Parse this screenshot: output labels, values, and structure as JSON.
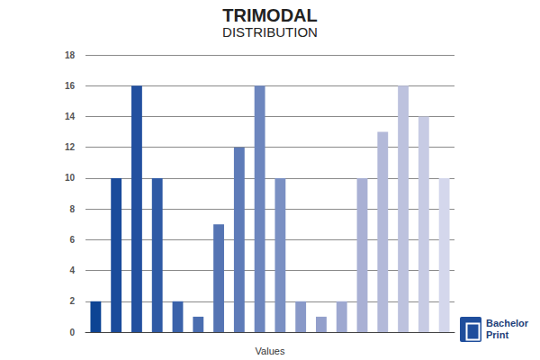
{
  "chart_data": {
    "type": "bar",
    "title": "TRIMODAL",
    "subtitle": "DISTRIBUTION",
    "x_label": "Values",
    "annotations": [
      "Bachelor",
      "Print"
    ],
    "categories": [
      null,
      null,
      null,
      null,
      null,
      null,
      null,
      null,
      null,
      null,
      null,
      null,
      null,
      null,
      null,
      null,
      null,
      null
    ],
    "values": [
      2,
      10,
      16,
      10,
      2,
      1,
      7,
      12,
      16,
      10,
      2,
      1,
      2,
      10,
      13,
      16,
      14,
      10
    ],
    "colors": [
      "#0d4494",
      "#1a4b9b",
      "#23509f",
      "#2f5aa5",
      "#3a62aa",
      "#4a6db0",
      "#5574b3",
      "#5e7bb8",
      "#6d86be",
      "#7a90c3",
      "#8999c8",
      "#939fcb",
      "#9ea8d0",
      "#a9b0d4",
      "#b3b9d9",
      "#bdc2de",
      "#c7cbe4",
      "#d4d7ec"
    ],
    "ylim": [
      0,
      18
    ],
    "yticks": [
      0,
      2,
      4,
      6,
      8,
      10,
      12,
      14,
      16,
      18
    ],
    "grid": true,
    "tick_labels": "y"
  }
}
